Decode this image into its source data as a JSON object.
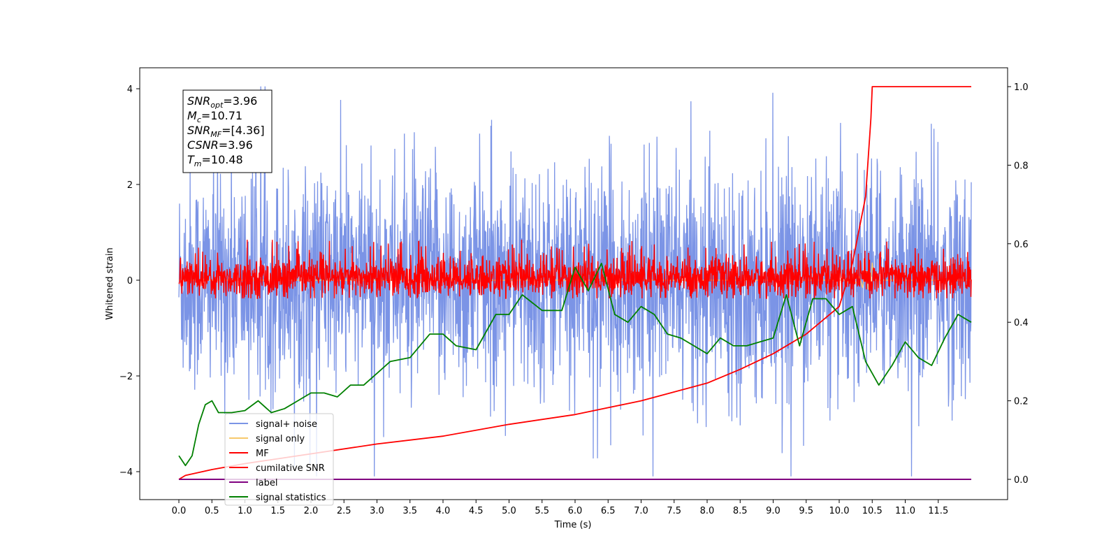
{
  "chart_data": {
    "type": "line",
    "title": "",
    "xlabel": "Time (s)",
    "ylabel": "Whitened strain",
    "xlim": [
      -0.6,
      12.6
    ],
    "ylim": [
      -4.6,
      4.5
    ],
    "y2lim": [
      -0.048,
      1.048
    ],
    "x_ticks": [
      "0.0",
      "0.5",
      "1.0",
      "1.5",
      "2.0",
      "2.5",
      "3.0",
      "3.5",
      "4.0",
      "4.5",
      "5.0",
      "5.5",
      "6.0",
      "6.5",
      "7.0",
      "7.5",
      "8.0",
      "8.5",
      "9.0",
      "9.5",
      "10.0",
      "10.5",
      "11.0",
      "11.5"
    ],
    "y_ticks": [
      "4",
      "2",
      "0",
      "−2",
      "−4"
    ],
    "y2_ticks": [
      "1.0",
      "0.8",
      "0.6",
      "0.4",
      "0.2",
      "0.0"
    ],
    "grid": false,
    "legend_position": "bottom-left",
    "annotation": {
      "lines": [
        {
          "sym": "SNR",
          "sub": "opt",
          "value": "=3.96"
        },
        {
          "sym": "M",
          "sub": "c",
          "value": "=10.71"
        },
        {
          "sym": "SNR",
          "sub": "MF",
          "value": "=[4.36]"
        },
        {
          "sym": "CSNR",
          "sub": "",
          "value": "=3.96"
        },
        {
          "sym": "T",
          "sub": "m",
          "value": "=10.48"
        }
      ]
    },
    "series": [
      {
        "name": "signal+ noise",
        "color": "#7b94e6",
        "axis": "left",
        "x_range": [
          0,
          12
        ],
        "y_band": [
          -3.0,
          3.0
        ],
        "y_extremes": [
          -4.1,
          4.05
        ]
      },
      {
        "name": "signal only",
        "color": "#f7c96b",
        "axis": "left",
        "x_range": [
          0,
          12
        ],
        "values_note": "near zero; small excursion near 10.5"
      },
      {
        "name": "MF",
        "color": "#ff0000",
        "axis": "left",
        "x_range": [
          0,
          12
        ],
        "y_band": [
          -0.35,
          0.75
        ]
      },
      {
        "name": "cumilative SNR",
        "color": "#ff0000",
        "axis": "right",
        "x": [
          0.0,
          0.1,
          0.5,
          1.0,
          2.0,
          3.0,
          4.0,
          5.0,
          6.0,
          7.0,
          8.0,
          8.5,
          9.0,
          9.5,
          10.0,
          10.2,
          10.4,
          10.48,
          10.5,
          11.0,
          12.0
        ],
        "values": [
          0.0,
          0.01,
          0.025,
          0.04,
          0.065,
          0.09,
          0.11,
          0.14,
          0.165,
          0.2,
          0.245,
          0.28,
          0.32,
          0.37,
          0.44,
          0.55,
          0.72,
          0.92,
          1.0,
          1.0,
          1.0
        ]
      },
      {
        "name": "label",
        "color": "#800080",
        "axis": "right",
        "x": [
          0.0,
          12.0
        ],
        "values": [
          0.0,
          0.0
        ]
      },
      {
        "name": "signal statistics",
        "color": "#008000",
        "axis": "right",
        "x": [
          0.0,
          0.1,
          0.2,
          0.3,
          0.4,
          0.5,
          0.6,
          0.8,
          1.0,
          1.2,
          1.4,
          1.6,
          1.8,
          2.0,
          2.2,
          2.4,
          2.6,
          2.8,
          3.0,
          3.2,
          3.5,
          3.8,
          4.0,
          4.2,
          4.5,
          4.8,
          5.0,
          5.2,
          5.5,
          5.8,
          6.0,
          6.2,
          6.4,
          6.6,
          6.8,
          7.0,
          7.2,
          7.4,
          7.6,
          7.8,
          8.0,
          8.2,
          8.4,
          8.6,
          8.8,
          9.0,
          9.2,
          9.4,
          9.6,
          9.8,
          10.0,
          10.2,
          10.4,
          10.6,
          10.8,
          11.0,
          11.2,
          11.4,
          11.6,
          11.8,
          12.0
        ],
        "values": [
          0.06,
          0.035,
          0.06,
          0.14,
          0.19,
          0.2,
          0.17,
          0.17,
          0.175,
          0.2,
          0.17,
          0.18,
          0.2,
          0.22,
          0.22,
          0.21,
          0.24,
          0.24,
          0.27,
          0.3,
          0.31,
          0.37,
          0.37,
          0.34,
          0.33,
          0.42,
          0.42,
          0.47,
          0.43,
          0.43,
          0.54,
          0.48,
          0.55,
          0.42,
          0.4,
          0.44,
          0.42,
          0.37,
          0.36,
          0.34,
          0.32,
          0.36,
          0.34,
          0.34,
          0.35,
          0.36,
          0.47,
          0.34,
          0.46,
          0.46,
          0.42,
          0.44,
          0.3,
          0.24,
          0.29,
          0.35,
          0.31,
          0.29,
          0.36,
          0.42,
          0.4
        ]
      }
    ]
  }
}
